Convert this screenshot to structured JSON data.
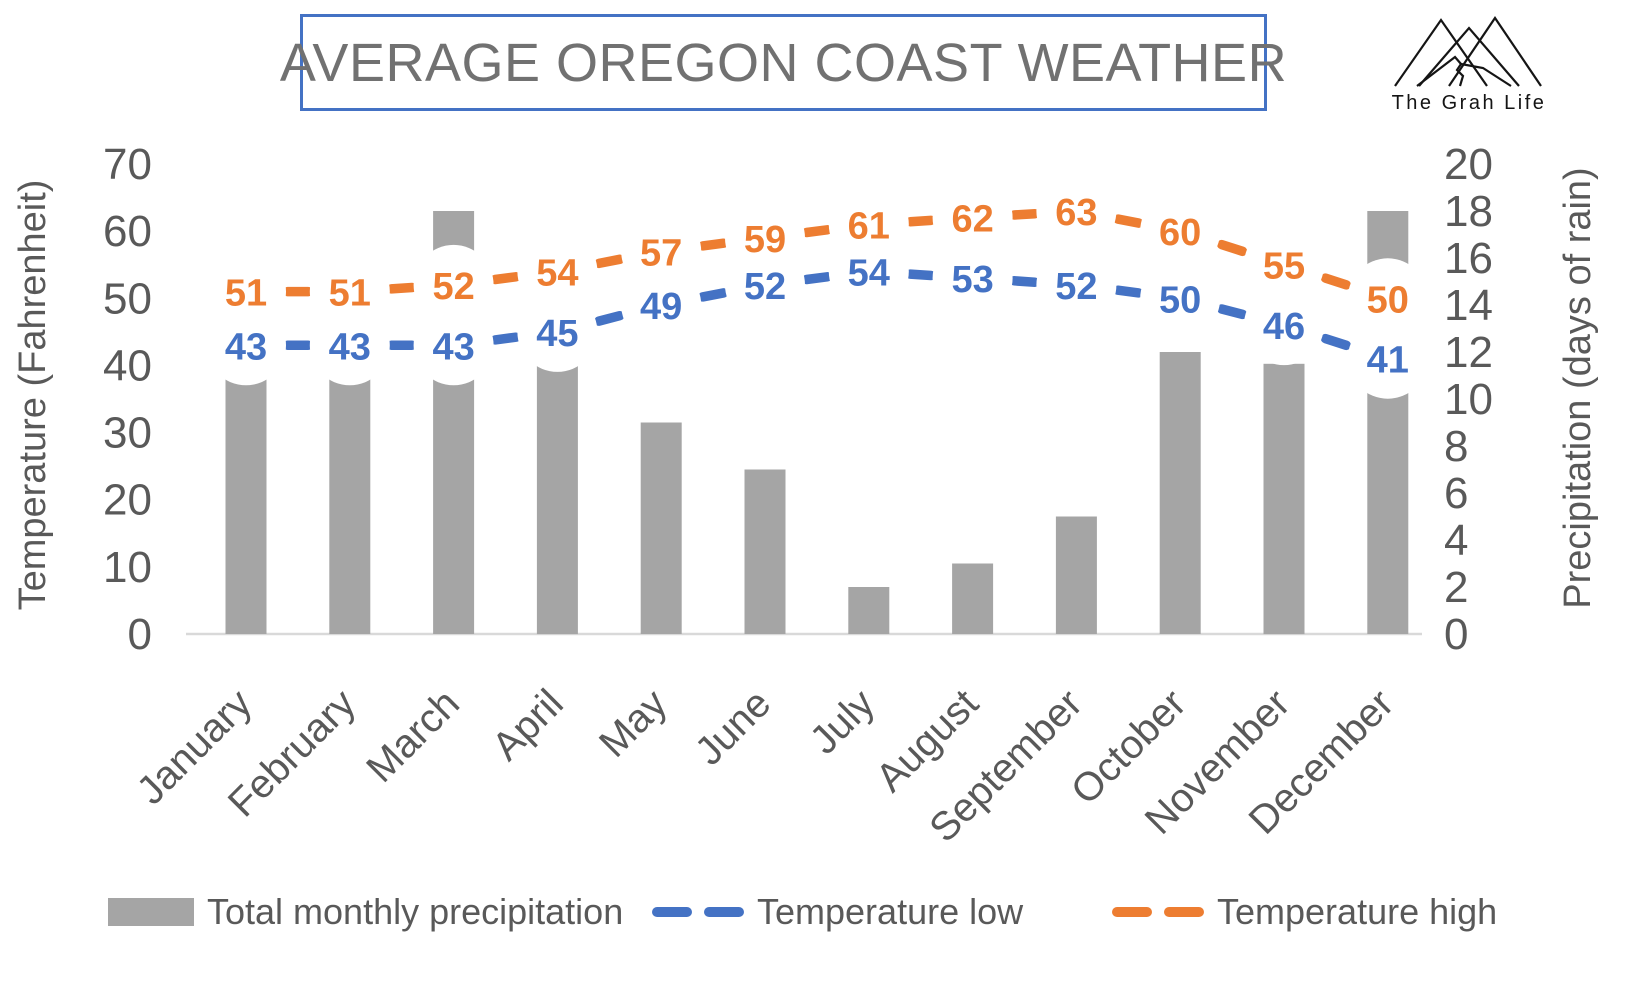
{
  "title": {
    "text": "AVERAGE OREGON COAST WEATHER",
    "border_color": "#4472C4",
    "text_color": "#717171"
  },
  "logo": {
    "name": "The Grah Life"
  },
  "colors": {
    "axis_text": "#595959",
    "axis_line": "#D9D9D9",
    "background": "#FFFFFF",
    "bar_gray": "#A5A5A5",
    "line_blue": "#4472C4",
    "line_orange": "#ED7D31"
  },
  "chart_data": {
    "type": "combo",
    "categories": [
      "January",
      "February",
      "March",
      "April",
      "May",
      "June",
      "July",
      "August",
      "September",
      "October",
      "November",
      "December"
    ],
    "series": [
      {
        "name": "Total monthly precipitation",
        "type": "bar",
        "axis": "right",
        "color": "#A5A5A5",
        "values": [
          11,
          11,
          18,
          11.5,
          9,
          7,
          2,
          3,
          5,
          12,
          11.5,
          18
        ]
      },
      {
        "name": "Temperature low",
        "type": "line",
        "dashed": true,
        "axis": "left",
        "color": "#4472C4",
        "values": [
          43,
          43,
          43,
          45,
          49,
          52,
          54,
          53,
          52,
          50,
          46,
          41
        ]
      },
      {
        "name": "Temperature high",
        "type": "line",
        "dashed": true,
        "axis": "left",
        "color": "#ED7D31",
        "values": [
          51,
          51,
          52,
          54,
          57,
          59,
          61,
          62,
          63,
          60,
          55,
          50
        ]
      }
    ],
    "left_axis": {
      "title": "Temperature (Fahrenheit)",
      "min": 0,
      "max": 70,
      "ticks": [
        0,
        10,
        20,
        30,
        40,
        50,
        60,
        70
      ]
    },
    "right_axis": {
      "title": "Precipitation (days of rain)",
      "min": 0,
      "max": 20,
      "ticks": [
        0,
        2,
        4,
        6,
        8,
        10,
        12,
        14,
        16,
        18,
        20
      ]
    },
    "grid": false,
    "legend_position": "bottom",
    "data_labels": "shown on temperature lines"
  }
}
